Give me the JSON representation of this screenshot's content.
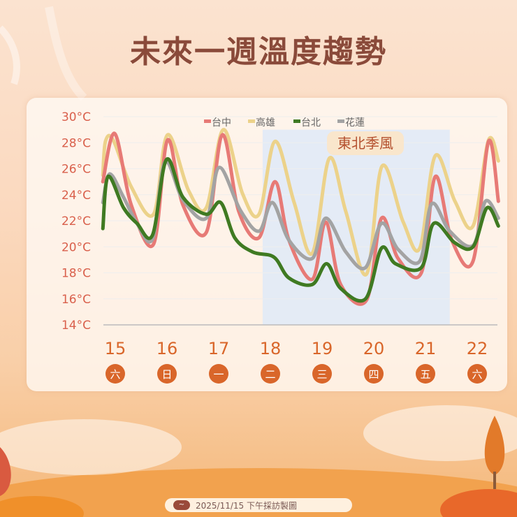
{
  "title": "未來一週溫度趨勢",
  "footer": {
    "text": "2025/11/15 下午採訪製圖",
    "logo_icon": "weather-bureau-logo"
  },
  "chart_data": {
    "type": "line",
    "title": "",
    "xlabel": "",
    "ylabel": "",
    "ylim": [
      14,
      30
    ],
    "xlim": [
      14.76,
      22.41
    ],
    "grid": true,
    "legend_position": "top-center",
    "y_ticks": [
      "14°C",
      "16°C",
      "18°C",
      "20°C",
      "22°C",
      "24°C",
      "26°C",
      "28°C",
      "30°C"
    ],
    "y_tick_values": [
      14,
      16,
      18,
      20,
      22,
      24,
      26,
      28,
      30
    ],
    "x_ticks": [
      {
        "day": 15,
        "label": "15",
        "weekday": "六"
      },
      {
        "day": 16,
        "label": "16",
        "weekday": "日"
      },
      {
        "day": 17,
        "label": "17",
        "weekday": "一"
      },
      {
        "day": 18,
        "label": "18",
        "weekday": "二"
      },
      {
        "day": 19,
        "label": "19",
        "weekday": "三"
      },
      {
        "day": 20,
        "label": "20",
        "weekday": "四"
      },
      {
        "day": 21,
        "label": "21",
        "weekday": "五"
      },
      {
        "day": 22,
        "label": "22",
        "weekday": "六"
      }
    ],
    "annotation": {
      "label": "東北季風",
      "range": [
        17.85,
        21.47
      ],
      "color": "#dbe8fa"
    },
    "series": [
      {
        "name": "台中",
        "color": "#e77a76",
        "points": [
          [
            14.76,
            25.0
          ],
          [
            14.99,
            28.7
          ],
          [
            15.31,
            23.2
          ],
          [
            15.74,
            20.2
          ],
          [
            16.01,
            28.2
          ],
          [
            16.31,
            23.2
          ],
          [
            16.76,
            21.1
          ],
          [
            17.07,
            28.6
          ],
          [
            17.39,
            22.7
          ],
          [
            17.78,
            20.7
          ],
          [
            18.09,
            25.0
          ],
          [
            18.36,
            20.5
          ],
          [
            18.81,
            17.5
          ],
          [
            19.07,
            21.9
          ],
          [
            19.36,
            17.1
          ],
          [
            19.86,
            15.9
          ],
          [
            20.15,
            22.2
          ],
          [
            20.47,
            19.1
          ],
          [
            20.92,
            18.0
          ],
          [
            21.19,
            25.4
          ],
          [
            21.51,
            20.5
          ],
          [
            21.92,
            18.9
          ],
          [
            22.22,
            28.1
          ],
          [
            22.41,
            23.5
          ]
        ]
      },
      {
        "name": "高雄",
        "color": "#ecd28a",
        "points": [
          [
            14.76,
            25.5
          ],
          [
            14.81,
            28.1
          ],
          [
            14.96,
            28.2
          ],
          [
            15.31,
            24.6
          ],
          [
            15.74,
            22.5
          ],
          [
            16.01,
            28.6
          ],
          [
            16.42,
            24.3
          ],
          [
            16.76,
            23.0
          ],
          [
            17.09,
            29.0
          ],
          [
            17.46,
            24.1
          ],
          [
            17.78,
            22.5
          ],
          [
            18.09,
            28.1
          ],
          [
            18.46,
            23.4
          ],
          [
            18.81,
            19.5
          ],
          [
            19.14,
            26.8
          ],
          [
            19.46,
            22.7
          ],
          [
            19.86,
            17.9
          ],
          [
            20.16,
            26.2
          ],
          [
            20.57,
            21.9
          ],
          [
            20.89,
            19.9
          ],
          [
            21.19,
            27.0
          ],
          [
            21.57,
            23.5
          ],
          [
            21.92,
            21.6
          ],
          [
            22.22,
            28.2
          ],
          [
            22.41,
            26.6
          ]
        ]
      },
      {
        "name": "台北",
        "color": "#3f7a22",
        "points": [
          [
            14.76,
            21.4
          ],
          [
            14.86,
            25.4
          ],
          [
            15.16,
            23.0
          ],
          [
            15.42,
            21.8
          ],
          [
            15.72,
            20.9
          ],
          [
            15.99,
            26.7
          ],
          [
            16.31,
            23.8
          ],
          [
            16.76,
            22.5
          ],
          [
            17.04,
            23.4
          ],
          [
            17.31,
            20.7
          ],
          [
            17.66,
            19.6
          ],
          [
            18.07,
            19.2
          ],
          [
            18.36,
            17.6
          ],
          [
            18.81,
            17.1
          ],
          [
            19.09,
            18.7
          ],
          [
            19.36,
            16.8
          ],
          [
            19.84,
            16.0
          ],
          [
            20.15,
            19.9
          ],
          [
            20.42,
            18.7
          ],
          [
            20.92,
            18.4
          ],
          [
            21.16,
            21.8
          ],
          [
            21.57,
            20.3
          ],
          [
            21.92,
            20.0
          ],
          [
            22.19,
            23.0
          ],
          [
            22.41,
            21.6
          ]
        ]
      },
      {
        "name": "花蓮",
        "color": "#a3a3a3",
        "points": [
          [
            14.76,
            23.4
          ],
          [
            14.89,
            25.6
          ],
          [
            15.16,
            23.8
          ],
          [
            15.42,
            21.8
          ],
          [
            15.72,
            20.6
          ],
          [
            15.96,
            26.5
          ],
          [
            16.31,
            23.6
          ],
          [
            16.76,
            22.2
          ],
          [
            17.01,
            26.1
          ],
          [
            17.42,
            22.8
          ],
          [
            17.78,
            21.2
          ],
          [
            18.04,
            23.4
          ],
          [
            18.36,
            20.5
          ],
          [
            18.81,
            19.1
          ],
          [
            19.07,
            22.2
          ],
          [
            19.46,
            19.6
          ],
          [
            19.84,
            18.4
          ],
          [
            20.15,
            21.8
          ],
          [
            20.47,
            19.8
          ],
          [
            20.89,
            18.9
          ],
          [
            21.12,
            23.3
          ],
          [
            21.47,
            21.2
          ],
          [
            21.92,
            20.1
          ],
          [
            22.16,
            23.5
          ],
          [
            22.41,
            22.2
          ]
        ]
      }
    ]
  }
}
